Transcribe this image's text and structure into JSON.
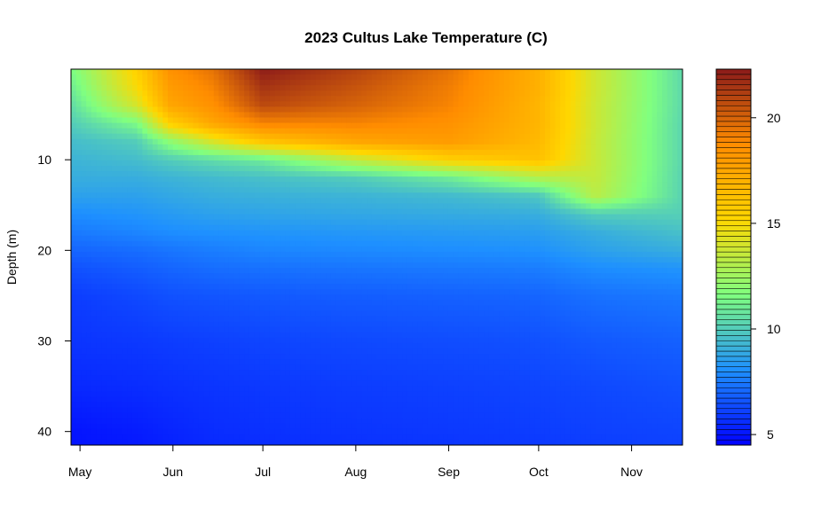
{
  "chart_data": {
    "type": "heatmap",
    "title": "2023 Cultus Lake Temperature (C)",
    "xlabel": "",
    "ylabel": "Depth (m)",
    "x_tick_labels": [
      "May",
      "Jun",
      "Jul",
      "Aug",
      "Sep",
      "Oct",
      "Nov"
    ],
    "x_tick_days": [
      1,
      32,
      62,
      93,
      124,
      154,
      185
    ],
    "x_range_days": [
      -2,
      202
    ],
    "y_ticks": [
      10,
      20,
      30,
      40
    ],
    "y_range": [
      0,
      41.5
    ],
    "y_reversed": true,
    "colorbar_ticks": [
      5,
      10,
      15,
      20
    ],
    "colorbar_range": [
      4.5,
      22.3
    ],
    "colorscale": [
      "#0000ff",
      "#1e90ff",
      "#80ff80",
      "#ffd700",
      "#ff8c00",
      "#8b1a1a"
    ],
    "profile_days": [
      -2,
      20,
      31,
      45,
      62,
      93,
      124,
      154,
      173,
      202
    ],
    "profile_depths": [
      0,
      2,
      4,
      6,
      8,
      10,
      12,
      14,
      16,
      18,
      20,
      22,
      25,
      30,
      35,
      40,
      41.5
    ],
    "temperature": [
      [
        11.5,
        11.0,
        10.5,
        10.0,
        9.5,
        9.2,
        9.0,
        8.6,
        8.0,
        7.5,
        7.0,
        6.5,
        6.0,
        5.8,
        5.5,
        5.0,
        5.0
      ],
      [
        15.5,
        15.0,
        14.0,
        11.5,
        10.0,
        9.5,
        9.0,
        8.6,
        8.2,
        7.8,
        7.2,
        6.8,
        6.3,
        5.9,
        5.6,
        5.2,
        5.1
      ],
      [
        18.5,
        18.0,
        17.5,
        15.5,
        12.0,
        10.0,
        9.2,
        8.8,
        8.4,
        8.0,
        7.4,
        7.0,
        6.5,
        6.0,
        5.7,
        5.4,
        5.3
      ],
      [
        19.5,
        19.0,
        18.5,
        17.5,
        14.0,
        10.5,
        9.4,
        9.0,
        8.6,
        8.1,
        7.6,
        7.2,
        6.6,
        6.1,
        5.8,
        5.6,
        5.5
      ],
      [
        22.2,
        21.5,
        20.8,
        19.0,
        16.0,
        11.0,
        9.6,
        9.1,
        8.7,
        8.2,
        7.8,
        7.3,
        6.7,
        6.2,
        5.9,
        5.7,
        5.6
      ],
      [
        21.0,
        20.5,
        20.0,
        19.0,
        17.5,
        13.5,
        10.0,
        9.2,
        8.8,
        8.3,
        7.9,
        7.4,
        6.8,
        6.3,
        6.0,
        5.8,
        5.7
      ],
      [
        19.5,
        19.2,
        19.0,
        18.5,
        18.0,
        15.5,
        11.0,
        9.4,
        8.9,
        8.4,
        8.0,
        7.5,
        6.9,
        6.4,
        6.1,
        5.9,
        5.8
      ],
      [
        17.0,
        17.0,
        16.8,
        16.8,
        16.6,
        16.2,
        13.0,
        9.8,
        9.0,
        8.5,
        8.1,
        7.6,
        7.0,
        6.5,
        6.2,
        6.0,
        5.9
      ],
      [
        13.8,
        13.8,
        13.7,
        13.7,
        13.6,
        13.6,
        13.5,
        13.2,
        10.0,
        9.0,
        8.6,
        8.0,
        7.3,
        6.7,
        6.3,
        6.1,
        6.0
      ],
      [
        10.4,
        10.4,
        10.4,
        10.3,
        10.3,
        10.3,
        10.2,
        10.2,
        10.1,
        9.6,
        9.0,
        8.2,
        7.5,
        6.9,
        6.5,
        6.2,
        6.1
      ]
    ]
  }
}
